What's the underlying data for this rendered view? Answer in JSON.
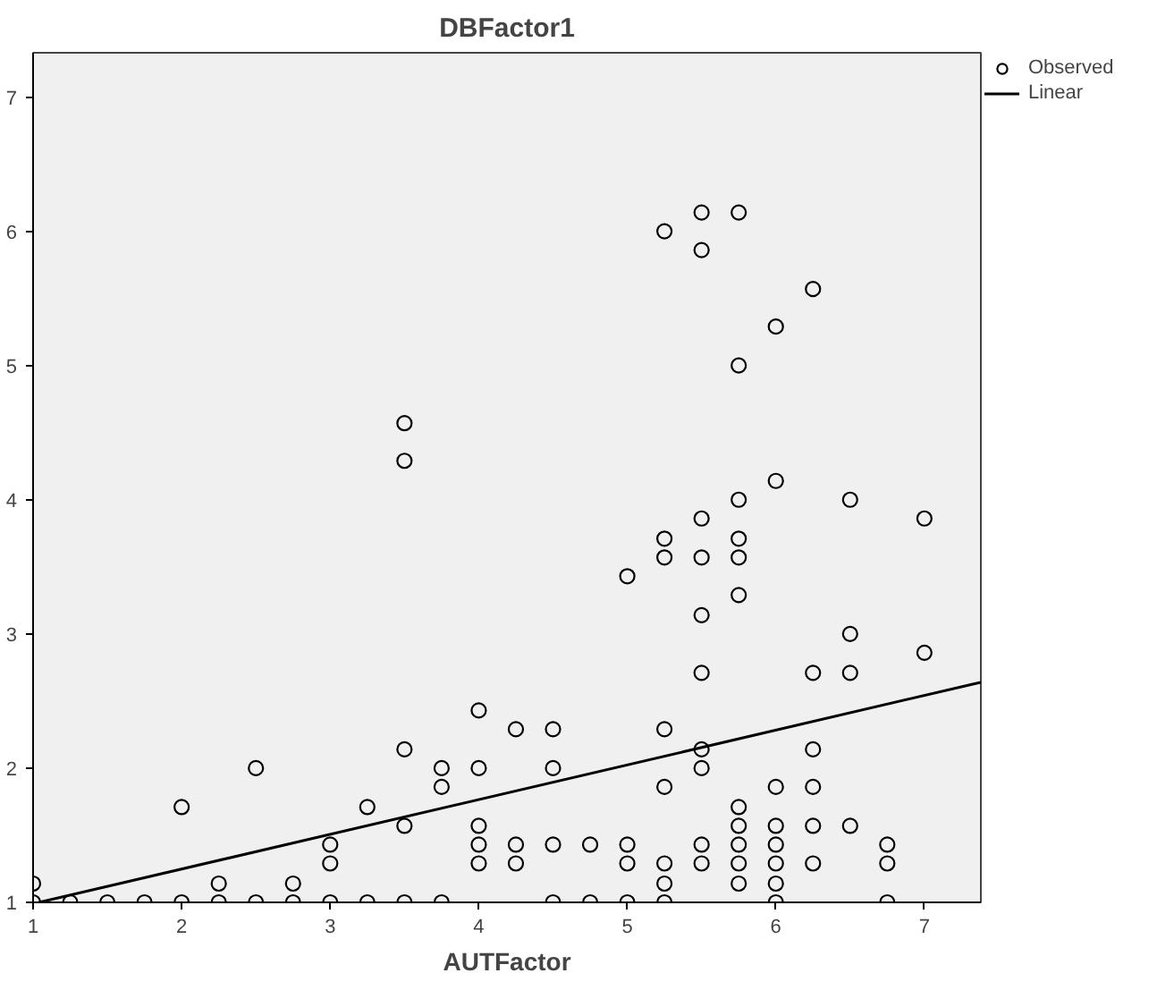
{
  "chart_data": {
    "type": "scatter",
    "title": "DBFactor1",
    "xlabel": "AUTFactor",
    "xlim": [
      1,
      7.38
    ],
    "ylim": [
      1,
      7.33
    ],
    "xticks": [
      1,
      2,
      3,
      4,
      5,
      6,
      7
    ],
    "yticks": [
      1,
      2,
      3,
      4,
      5,
      6,
      7
    ],
    "grid": false,
    "legend": "top right",
    "series": [
      {
        "name": "Observed",
        "color": "#000000",
        "marker": "circle",
        "x": [
          1,
          1,
          1.25,
          1.5,
          1.75,
          2,
          2,
          2.25,
          2.25,
          2.5,
          2.5,
          2.75,
          2.75,
          3,
          3,
          3,
          3.25,
          3.25,
          3.5,
          3.5,
          3.5,
          3.5,
          3.5,
          3.75,
          3.75,
          3.75,
          4,
          4,
          4,
          4,
          4,
          4.25,
          4.25,
          4.25,
          4.5,
          4.5,
          4.5,
          4.5,
          4.75,
          4.75,
          5,
          5,
          5,
          5,
          5.25,
          5.25,
          5.25,
          5.25,
          5.25,
          5.25,
          5.25,
          5.25,
          5.5,
          5.5,
          5.5,
          5.5,
          5.5,
          5.5,
          5.5,
          5.5,
          5.5,
          5.5,
          5.75,
          5.75,
          5.75,
          5.75,
          5.75,
          5.75,
          5.75,
          5.75,
          5.75,
          5.75,
          5.75,
          6,
          6,
          6,
          6,
          6,
          6,
          6,
          6,
          6.25,
          6.25,
          6.25,
          6.25,
          6.25,
          6.25,
          6.5,
          6.5,
          6.5,
          6.5,
          6.75,
          6.75,
          6.75,
          7,
          7
        ],
        "values": [
          1,
          1.14,
          1,
          1,
          1,
          1,
          1.71,
          1,
          1.14,
          1,
          2,
          1,
          1.14,
          1,
          1.29,
          1.43,
          1,
          1.71,
          1,
          1.57,
          2.14,
          4.29,
          4.57,
          1,
          1.86,
          2,
          1.29,
          1.43,
          1.57,
          2,
          2.43,
          1.29,
          1.43,
          2.29,
          1,
          1.43,
          2,
          2.29,
          1,
          1.43,
          1,
          1.29,
          1.43,
          3.43,
          1,
          1.14,
          1.29,
          1.86,
          2.29,
          3.57,
          3.71,
          6,
          1.29,
          1.43,
          2,
          2.14,
          2.71,
          3.14,
          3.57,
          3.86,
          5.86,
          6.14,
          1.14,
          1.29,
          1.43,
          1.57,
          1.71,
          3.29,
          3.57,
          3.71,
          4,
          5,
          6.14,
          1,
          1.14,
          1.29,
          1.43,
          1.57,
          1.86,
          4.14,
          5.29,
          1.29,
          1.57,
          1.86,
          2.14,
          2.71,
          5.57,
          1.57,
          2.71,
          3,
          4,
          1,
          1.29,
          1.43,
          2.86,
          3.86
        ]
      },
      {
        "name": "Linear",
        "type": "line",
        "color": "#000000",
        "line_style": "solid",
        "x": [
          1.04,
          7.38
        ],
        "values": [
          1.0,
          2.64
        ]
      }
    ]
  }
}
